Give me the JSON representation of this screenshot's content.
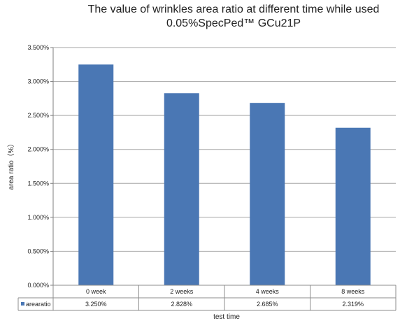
{
  "chart_data": {
    "type": "bar",
    "title_lines": [
      "The value of wrinkles area ratio at different time while used",
      "0.05%SpecPed™ GCu21P"
    ],
    "xlabel": "test time",
    "ylabel": "area ratio（%）",
    "categories": [
      "0 week",
      "2 weeks",
      "4 weeks",
      "8 weeks"
    ],
    "series": [
      {
        "name": "arearatio",
        "values": [
          3.25,
          2.828,
          2.685,
          2.319
        ],
        "value_labels": [
          "3.250%",
          "2.828%",
          "2.685%",
          "2.319%"
        ],
        "color": "#4a77b4"
      }
    ],
    "ylim": [
      0,
      3.5
    ],
    "yticks": [
      0,
      0.5,
      1.0,
      1.5,
      2.0,
      2.5,
      3.0,
      3.5
    ],
    "ytick_labels": [
      "0.000%",
      "0.500%",
      "1.000%",
      "1.500%",
      "2.000%",
      "2.500%",
      "3.000%",
      "3.500%"
    ],
    "grid": "horizontal",
    "data_table": true
  }
}
